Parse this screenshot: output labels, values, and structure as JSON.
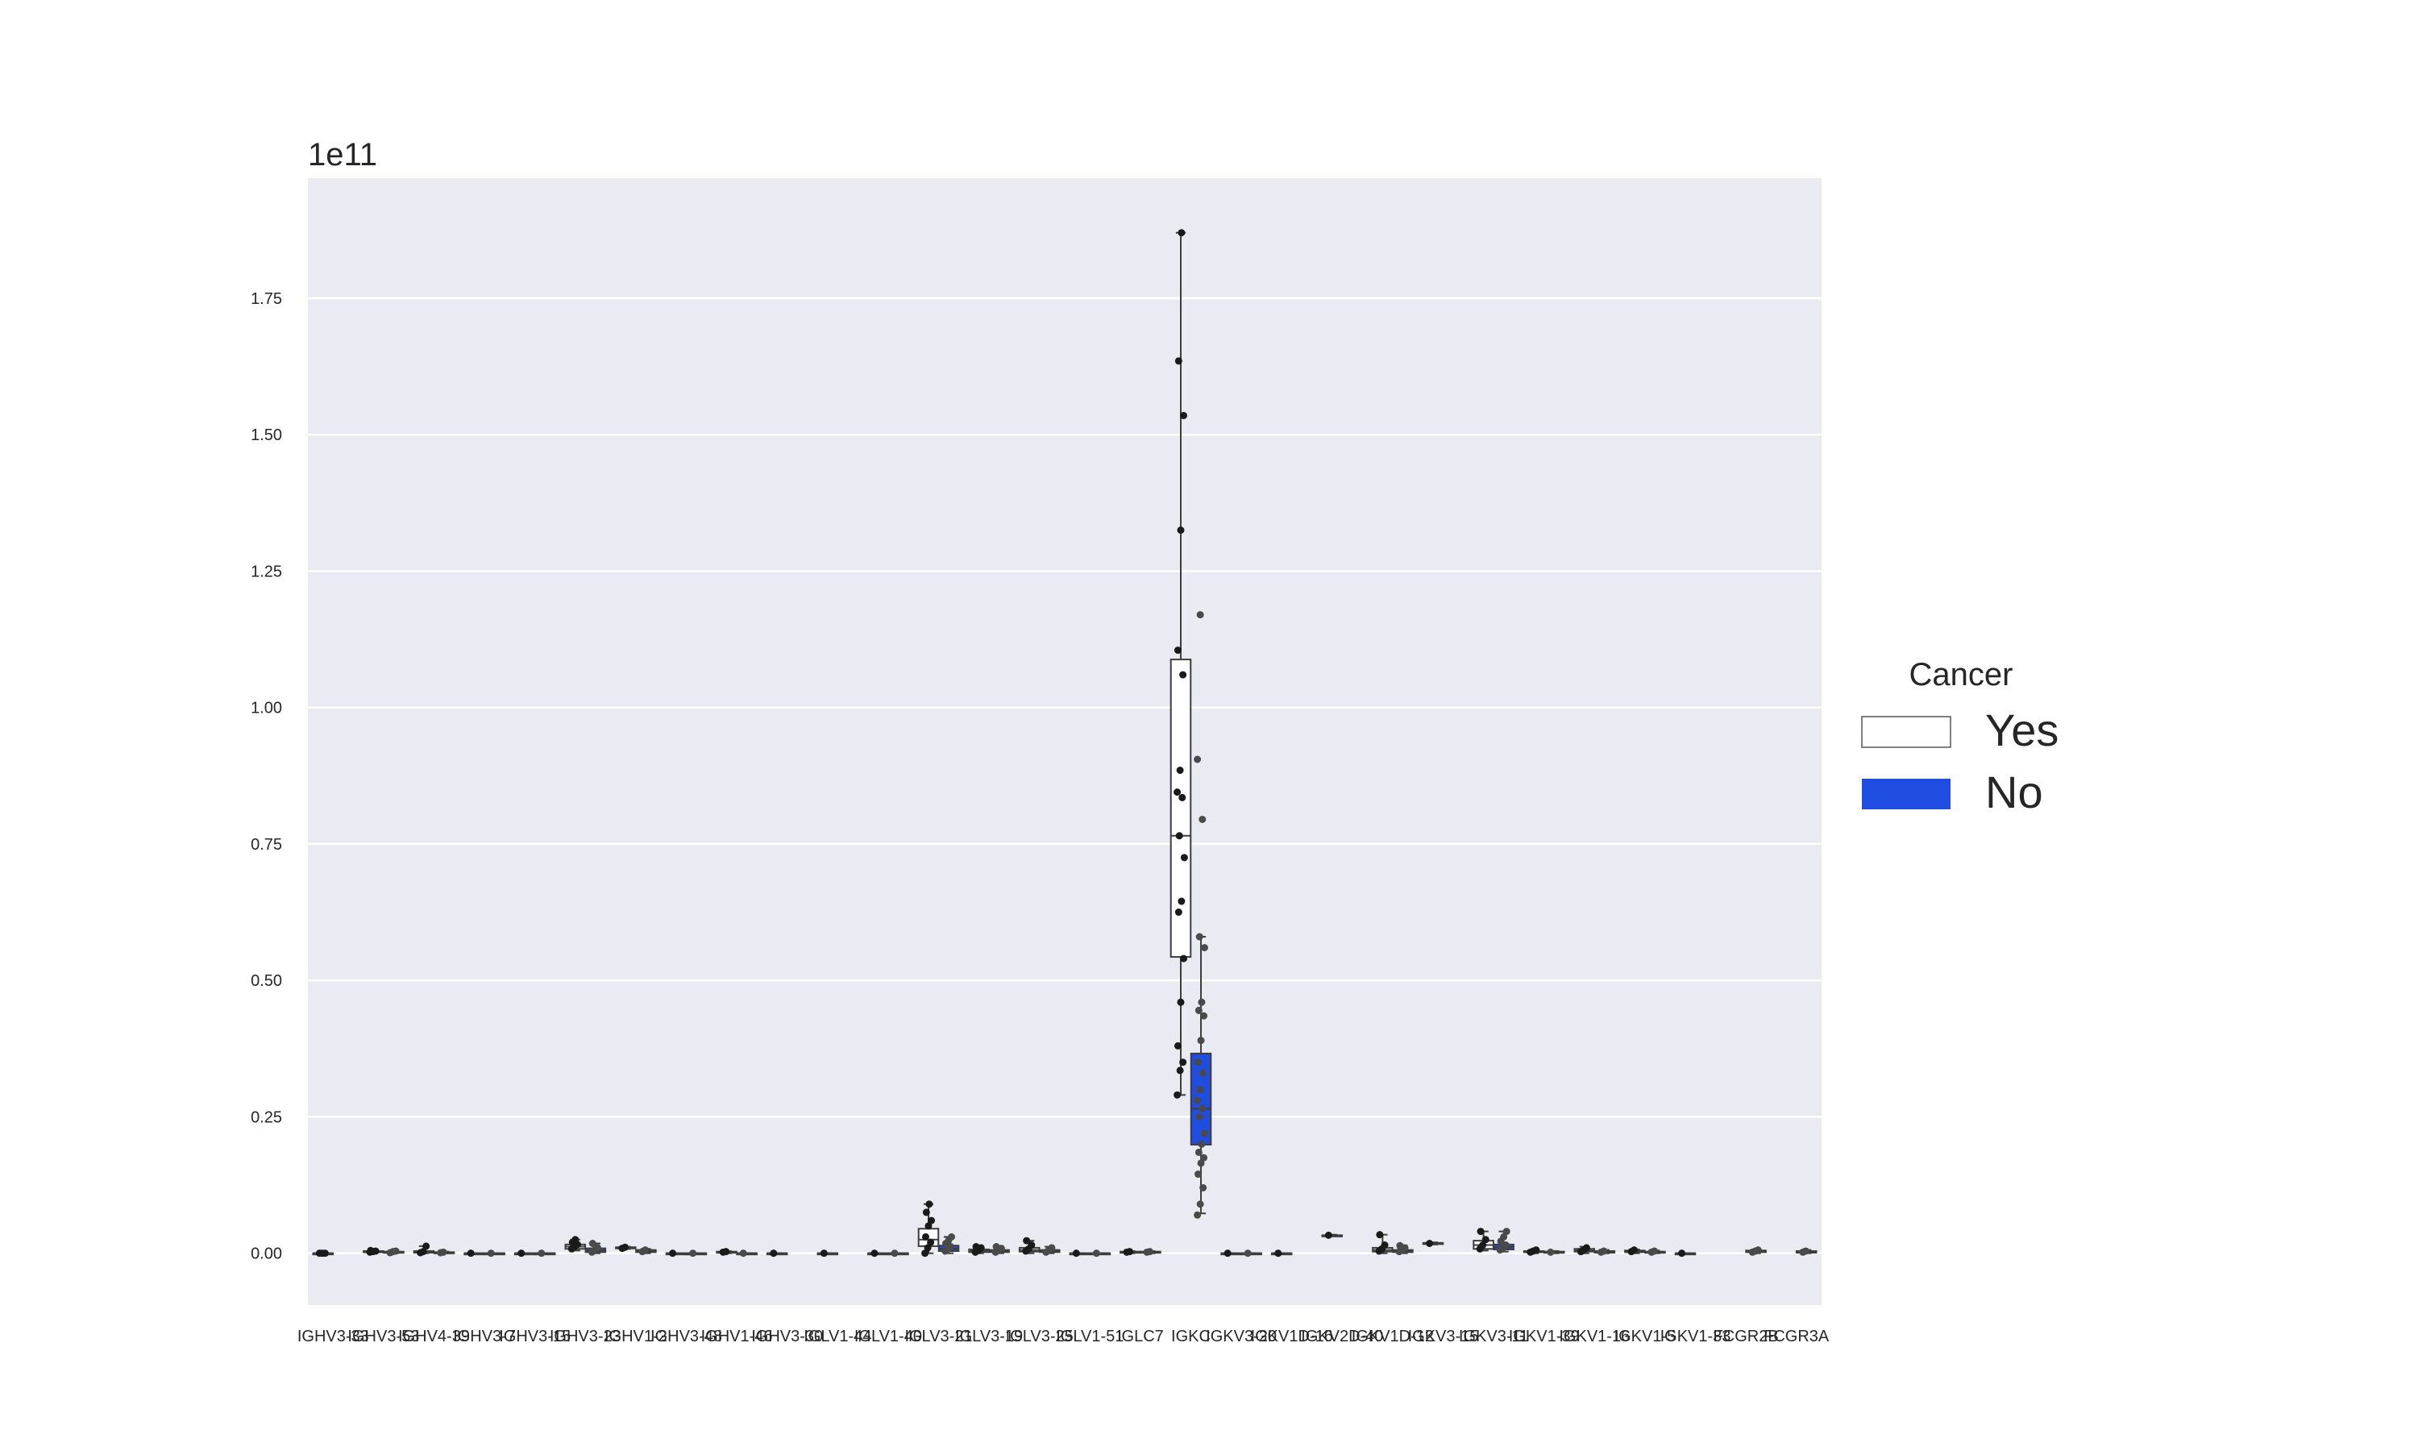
{
  "chart_data": {
    "type": "box",
    "offset_label": "1e11",
    "xlabel": "",
    "ylabel": "",
    "ylim": [
      -0.095,
      1.97
    ],
    "yticks": [
      "0.00",
      "0.25",
      "0.50",
      "0.75",
      "1.00",
      "1.25",
      "1.50",
      "1.75"
    ],
    "yticks_values": [
      0,
      0.25,
      0.5,
      0.75,
      1.0,
      1.25,
      1.5,
      1.75
    ],
    "grid": true,
    "legend": {
      "title": "Cancer",
      "placement": "right",
      "entries": [
        {
          "label": "Yes",
          "color": "#ffffff"
        },
        {
          "label": "No",
          "color": "#1f4de0"
        }
      ]
    },
    "categories": [
      "IGHV3-33",
      "IGHV3-53",
      "IGHV4-39",
      "IGHV3-7",
      "IGHV3-15",
      "IGHV3-23",
      "IGHV1-2",
      "IGHV3-48",
      "IGHV1-46",
      "IGHV3-30",
      "IGLV1-44",
      "IGLV1-40",
      "IGLV3-21",
      "IGLV3-19",
      "IGLV3-25",
      "IGLV1-51",
      "IGLC7",
      "IGKC",
      "IGKV3-20",
      "IGKV1D-16",
      "IGKV2D-40",
      "IGKV1D-12",
      "IGKV3-15",
      "IGKV3-11",
      "IGKV1-39",
      "IGKV1-16",
      "IGKV1-5",
      "IGKV1-33",
      "FCGR2B",
      "FCGR3A"
    ],
    "series": [
      {
        "name": "Yes",
        "color": "#ffffff",
        "boxes": [
          {
            "min": 0.0,
            "q1": 0.0,
            "median": 0.0,
            "q3": 0.0,
            "max": 0.0,
            "points": [
              0.0,
              0.0,
              0.0
            ]
          },
          {
            "min": 0.0,
            "q1": 0.002,
            "median": 0.003,
            "q3": 0.004,
            "max": 0.006,
            "points": [
              0.002,
              0.003,
              0.004,
              0.005
            ]
          },
          {
            "min": 0.0,
            "q1": 0.001,
            "median": 0.002,
            "q3": 0.004,
            "max": 0.013,
            "points": [
              0.001,
              0.003,
              0.013
            ]
          },
          {
            "min": 0.0,
            "q1": 0.0,
            "median": 0.0,
            "q3": 0.0,
            "max": 0.0,
            "points": [
              0.0
            ]
          },
          {
            "min": 0.0,
            "q1": 0.0,
            "median": 0.0,
            "q3": 0.0,
            "max": 0.0,
            "points": [
              0.0
            ]
          },
          {
            "min": 0.005,
            "q1": 0.008,
            "median": 0.012,
            "q3": 0.016,
            "max": 0.025,
            "points": [
              0.008,
              0.012,
              0.016,
              0.02,
              0.025
            ]
          },
          {
            "min": 0.008,
            "q1": 0.009,
            "median": 0.01,
            "q3": 0.011,
            "max": 0.012,
            "points": [
              0.009,
              0.011
            ]
          },
          {
            "min": 0.0,
            "q1": 0.0,
            "median": 0.0,
            "q3": 0.0,
            "max": 0.0,
            "points": [
              0.0
            ]
          },
          {
            "min": 0.0,
            "q1": 0.001,
            "median": 0.002,
            "q3": 0.003,
            "max": 0.004,
            "points": [
              0.002,
              0.003
            ]
          },
          {
            "min": 0.0,
            "q1": 0.0,
            "median": 0.0,
            "q3": 0.0,
            "max": 0.0,
            "points": [
              0.0
            ]
          },
          {
            "min": 0.0,
            "q1": 0.0,
            "median": 0.0,
            "q3": 0.0,
            "max": 0.0,
            "points": [
              0.0
            ]
          },
          {
            "min": 0.0,
            "q1": 0.0,
            "median": 0.0,
            "q3": 0.0,
            "max": 0.0,
            "points": [
              0.0
            ]
          },
          {
            "min": 0.0,
            "q1": 0.013,
            "median": 0.025,
            "q3": 0.045,
            "max": 0.09,
            "points": [
              0.0,
              0.01,
              0.02,
              0.03,
              0.05,
              0.06,
              0.075,
              0.09
            ]
          },
          {
            "min": 0.0,
            "q1": 0.002,
            "median": 0.004,
            "q3": 0.007,
            "max": 0.012,
            "points": [
              0.002,
              0.005,
              0.01,
              0.012
            ]
          },
          {
            "min": 0.0,
            "q1": 0.003,
            "median": 0.006,
            "q3": 0.01,
            "max": 0.023,
            "points": [
              0.004,
              0.008,
              0.015,
              0.023
            ]
          },
          {
            "min": 0.0,
            "q1": 0.0,
            "median": 0.0,
            "q3": 0.0,
            "max": 0.0,
            "points": [
              0.0
            ]
          },
          {
            "min": 0.0,
            "q1": 0.001,
            "median": 0.002,
            "q3": 0.003,
            "max": 0.004,
            "points": [
              0.002,
              0.003
            ]
          },
          {
            "min": 0.29,
            "q1": 0.543,
            "median": 0.765,
            "q3": 1.088,
            "max": 1.87,
            "points": [
              0.29,
              0.335,
              0.35,
              0.38,
              0.46,
              0.54,
              0.625,
              0.645,
              0.725,
              0.765,
              0.835,
              0.845,
              0.885,
              1.06,
              1.105,
              1.325,
              1.535,
              1.635,
              1.87
            ]
          },
          {
            "min": 0.0,
            "q1": 0.0,
            "median": 0.0,
            "q3": 0.0,
            "max": 0.0,
            "points": [
              0.0
            ]
          },
          {
            "min": 0.0,
            "q1": 0.0,
            "median": 0.0,
            "q3": 0.0,
            "max": 0.0,
            "points": [
              0.0
            ]
          },
          {
            "min": 0.032,
            "q1": 0.032,
            "median": 0.032,
            "q3": 0.033,
            "max": 0.034,
            "points": [
              0.033
            ]
          },
          {
            "min": 0.0,
            "q1": 0.003,
            "median": 0.006,
            "q3": 0.01,
            "max": 0.034,
            "points": [
              0.004,
              0.008,
              0.015,
              0.034
            ]
          },
          {
            "min": 0.016,
            "q1": 0.017,
            "median": 0.018,
            "q3": 0.019,
            "max": 0.02,
            "points": [
              0.018
            ]
          },
          {
            "min": 0.005,
            "q1": 0.008,
            "median": 0.015,
            "q3": 0.023,
            "max": 0.04,
            "points": [
              0.008,
              0.015,
              0.025,
              0.04
            ]
          },
          {
            "min": 0.0,
            "q1": 0.002,
            "median": 0.003,
            "q3": 0.004,
            "max": 0.006,
            "points": [
              0.002,
              0.004,
              0.006
            ]
          },
          {
            "min": 0.0,
            "q1": 0.003,
            "median": 0.005,
            "q3": 0.008,
            "max": 0.012,
            "points": [
              0.003,
              0.006,
              0.01
            ]
          },
          {
            "min": 0.0,
            "q1": 0.002,
            "median": 0.003,
            "q3": 0.005,
            "max": 0.007,
            "points": [
              0.003,
              0.006
            ]
          },
          {
            "min": 0.0,
            "q1": 0.0,
            "median": 0.0,
            "q3": 0.0,
            "max": 0.0,
            "points": [
              0.0
            ]
          },
          null,
          null
        ]
      },
      {
        "name": "No",
        "color": "#1f4de0",
        "boxes": [
          null,
          {
            "min": 0.0,
            "q1": 0.001,
            "median": 0.002,
            "q3": 0.003,
            "max": 0.005,
            "points": [
              0.001,
              0.003,
              0.004
            ]
          },
          {
            "min": 0.0,
            "q1": 0.0,
            "median": 0.001,
            "q3": 0.002,
            "max": 0.003,
            "points": [
              0.001,
              0.002
            ]
          },
          {
            "min": 0.0,
            "q1": 0.0,
            "median": 0.0,
            "q3": 0.0,
            "max": 0.0,
            "points": [
              0.0
            ]
          },
          {
            "min": 0.0,
            "q1": 0.0,
            "median": 0.0,
            "q3": 0.0,
            "max": 0.0,
            "points": [
              0.0
            ]
          },
          {
            "min": 0.0,
            "q1": 0.002,
            "median": 0.005,
            "q3": 0.009,
            "max": 0.018,
            "points": [
              0.002,
              0.006,
              0.01,
              0.018
            ]
          },
          {
            "min": 0.0,
            "q1": 0.002,
            "median": 0.004,
            "q3": 0.006,
            "max": 0.008,
            "points": [
              0.003,
              0.006
            ]
          },
          {
            "min": 0.0,
            "q1": 0.0,
            "median": 0.0,
            "q3": 0.0,
            "max": 0.0,
            "points": [
              0.0
            ]
          },
          {
            "min": 0.0,
            "q1": 0.0,
            "median": 0.0,
            "q3": 0.0,
            "max": 0.0,
            "points": [
              0.0
            ]
          },
          null,
          null,
          {
            "min": 0.0,
            "q1": 0.0,
            "median": 0.0,
            "q3": 0.0,
            "max": 0.0,
            "points": [
              0.0
            ]
          },
          {
            "min": 0.0,
            "q1": 0.004,
            "median": 0.008,
            "q3": 0.014,
            "max": 0.03,
            "points": [
              0.004,
              0.008,
              0.012,
              0.018,
              0.024,
              0.03
            ]
          },
          {
            "min": 0.0,
            "q1": 0.002,
            "median": 0.004,
            "q3": 0.006,
            "max": 0.012,
            "points": [
              0.002,
              0.005,
              0.009,
              0.012
            ]
          },
          {
            "min": 0.0,
            "q1": 0.002,
            "median": 0.004,
            "q3": 0.006,
            "max": 0.012,
            "points": [
              0.002,
              0.006,
              0.01
            ]
          },
          {
            "min": 0.0,
            "q1": 0.0,
            "median": 0.0,
            "q3": 0.0,
            "max": 0.0,
            "points": [
              0.0
            ]
          },
          {
            "min": 0.0,
            "q1": 0.001,
            "median": 0.002,
            "q3": 0.003,
            "max": 0.004,
            "points": [
              0.002,
              0.003
            ]
          },
          {
            "min": 0.073,
            "q1": 0.199,
            "median": 0.265,
            "q3": 0.366,
            "max": 0.58,
            "points": [
              0.07,
              0.09,
              0.12,
              0.145,
              0.165,
              0.175,
              0.185,
              0.2,
              0.22,
              0.25,
              0.265,
              0.28,
              0.3,
              0.33,
              0.35,
              0.39,
              0.435,
              0.445,
              0.46,
              0.56,
              0.58,
              0.795,
              0.905,
              1.17
            ]
          },
          {
            "min": 0.0,
            "q1": 0.0,
            "median": 0.0,
            "q3": 0.0,
            "max": 0.0,
            "points": [
              0.0
            ]
          },
          null,
          null,
          {
            "min": 0.0,
            "q1": 0.002,
            "median": 0.004,
            "q3": 0.006,
            "max": 0.014,
            "points": [
              0.003,
              0.006,
              0.01,
              0.014
            ]
          },
          null,
          {
            "min": 0.003,
            "q1": 0.007,
            "median": 0.011,
            "q3": 0.016,
            "max": 0.04,
            "points": [
              0.006,
              0.01,
              0.015,
              0.022,
              0.03,
              0.04
            ]
          },
          {
            "min": 0.0,
            "q1": 0.001,
            "median": 0.002,
            "q3": 0.003,
            "max": 0.004,
            "points": [
              0.002
            ]
          },
          {
            "min": 0.0,
            "q1": 0.001,
            "median": 0.002,
            "q3": 0.004,
            "max": 0.006,
            "points": [
              0.002,
              0.004
            ]
          },
          {
            "min": 0.0,
            "q1": 0.001,
            "median": 0.002,
            "q3": 0.003,
            "max": 0.005,
            "points": [
              0.002,
              0.004
            ]
          },
          null,
          {
            "min": 0.0,
            "q1": 0.002,
            "median": 0.003,
            "q3": 0.005,
            "max": 0.007,
            "points": [
              0.002,
              0.004,
              0.006
            ]
          },
          {
            "min": 0.0,
            "q1": 0.001,
            "median": 0.002,
            "q3": 0.004,
            "max": 0.006,
            "points": [
              0.002,
              0.004
            ]
          }
        ]
      }
    ]
  }
}
